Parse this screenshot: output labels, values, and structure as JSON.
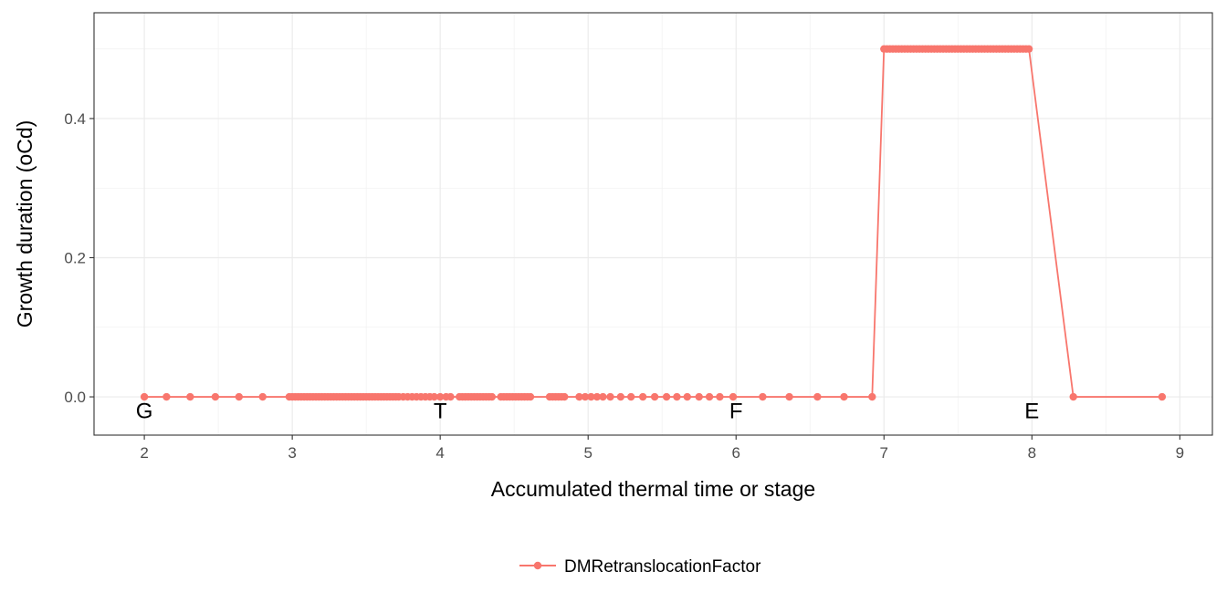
{
  "chart_data": {
    "type": "line",
    "title": "",
    "xlabel": "Accumulated thermal time or stage",
    "ylabel": "Growth duration (oCd)",
    "xlim": [
      1.66,
      9.22
    ],
    "ylim": [
      -0.055,
      0.552
    ],
    "x_ticks": [
      2,
      3,
      4,
      5,
      6,
      7,
      8,
      9
    ],
    "y_ticks": [
      0.0,
      0.2,
      0.4
    ],
    "x_tick_labels": [
      "2",
      "3",
      "4",
      "5",
      "6",
      "7",
      "8",
      "9"
    ],
    "y_tick_labels": [
      "0.0",
      "0.2",
      "0.4"
    ],
    "grid": true,
    "legend_position": "bottom",
    "series": [
      {
        "name": "DMRetranslocationFactor",
        "color": "#F8766D",
        "points": [
          [
            2.0,
            0
          ],
          [
            2.15,
            0
          ],
          [
            2.31,
            0
          ],
          [
            2.48,
            0
          ],
          [
            2.64,
            0
          ],
          [
            2.8,
            0
          ],
          [
            2.98,
            0
          ],
          [
            3.0,
            0
          ],
          [
            3.02,
            0
          ],
          [
            3.04,
            0
          ],
          [
            3.06,
            0
          ],
          [
            3.08,
            0
          ],
          [
            3.1,
            0
          ],
          [
            3.12,
            0
          ],
          [
            3.14,
            0
          ],
          [
            3.16,
            0
          ],
          [
            3.18,
            0
          ],
          [
            3.2,
            0
          ],
          [
            3.22,
            0
          ],
          [
            3.24,
            0
          ],
          [
            3.26,
            0
          ],
          [
            3.28,
            0
          ],
          [
            3.3,
            0
          ],
          [
            3.32,
            0
          ],
          [
            3.34,
            0
          ],
          [
            3.36,
            0
          ],
          [
            3.38,
            0
          ],
          [
            3.4,
            0
          ],
          [
            3.42,
            0
          ],
          [
            3.44,
            0
          ],
          [
            3.46,
            0
          ],
          [
            3.48,
            0
          ],
          [
            3.5,
            0
          ],
          [
            3.52,
            0
          ],
          [
            3.54,
            0
          ],
          [
            3.56,
            0
          ],
          [
            3.58,
            0
          ],
          [
            3.6,
            0
          ],
          [
            3.62,
            0
          ],
          [
            3.64,
            0
          ],
          [
            3.66,
            0
          ],
          [
            3.68,
            0
          ],
          [
            3.7,
            0
          ],
          [
            3.72,
            0
          ],
          [
            3.75,
            0
          ],
          [
            3.78,
            0
          ],
          [
            3.81,
            0
          ],
          [
            3.84,
            0
          ],
          [
            3.87,
            0
          ],
          [
            3.9,
            0
          ],
          [
            3.93,
            0
          ],
          [
            3.96,
            0
          ],
          [
            4.0,
            0
          ],
          [
            4.04,
            0
          ],
          [
            4.07,
            0
          ],
          [
            4.13,
            0
          ],
          [
            4.15,
            0
          ],
          [
            4.17,
            0
          ],
          [
            4.19,
            0
          ],
          [
            4.21,
            0
          ],
          [
            4.23,
            0
          ],
          [
            4.25,
            0
          ],
          [
            4.27,
            0
          ],
          [
            4.29,
            0
          ],
          [
            4.31,
            0
          ],
          [
            4.33,
            0
          ],
          [
            4.35,
            0
          ],
          [
            4.41,
            0
          ],
          [
            4.43,
            0
          ],
          [
            4.45,
            0
          ],
          [
            4.47,
            0
          ],
          [
            4.49,
            0
          ],
          [
            4.51,
            0
          ],
          [
            4.53,
            0
          ],
          [
            4.55,
            0
          ],
          [
            4.57,
            0
          ],
          [
            4.59,
            0
          ],
          [
            4.61,
            0
          ],
          [
            4.74,
            0
          ],
          [
            4.76,
            0
          ],
          [
            4.78,
            0
          ],
          [
            4.8,
            0
          ],
          [
            4.82,
            0
          ],
          [
            4.84,
            0
          ],
          [
            4.94,
            0
          ],
          [
            4.98,
            0
          ],
          [
            5.02,
            0
          ],
          [
            5.06,
            0
          ],
          [
            5.1,
            0
          ],
          [
            5.15,
            0
          ],
          [
            5.22,
            0
          ],
          [
            5.29,
            0
          ],
          [
            5.37,
            0
          ],
          [
            5.45,
            0
          ],
          [
            5.53,
            0
          ],
          [
            5.6,
            0
          ],
          [
            5.67,
            0
          ],
          [
            5.75,
            0
          ],
          [
            5.82,
            0
          ],
          [
            5.89,
            0
          ],
          [
            5.98,
            0
          ],
          [
            6.18,
            0
          ],
          [
            6.36,
            0
          ],
          [
            6.55,
            0
          ],
          [
            6.73,
            0
          ],
          [
            6.92,
            0
          ],
          [
            7.0,
            0.5
          ],
          [
            7.02,
            0.5
          ],
          [
            7.04,
            0.5
          ],
          [
            7.06,
            0.5
          ],
          [
            7.08,
            0.5
          ],
          [
            7.1,
            0.5
          ],
          [
            7.12,
            0.5
          ],
          [
            7.14,
            0.5
          ],
          [
            7.16,
            0.5
          ],
          [
            7.18,
            0.5
          ],
          [
            7.2,
            0.5
          ],
          [
            7.22,
            0.5
          ],
          [
            7.24,
            0.5
          ],
          [
            7.26,
            0.5
          ],
          [
            7.28,
            0.5
          ],
          [
            7.3,
            0.5
          ],
          [
            7.32,
            0.5
          ],
          [
            7.34,
            0.5
          ],
          [
            7.36,
            0.5
          ],
          [
            7.38,
            0.5
          ],
          [
            7.4,
            0.5
          ],
          [
            7.42,
            0.5
          ],
          [
            7.44,
            0.5
          ],
          [
            7.46,
            0.5
          ],
          [
            7.48,
            0.5
          ],
          [
            7.5,
            0.5
          ],
          [
            7.52,
            0.5
          ],
          [
            7.54,
            0.5
          ],
          [
            7.56,
            0.5
          ],
          [
            7.58,
            0.5
          ],
          [
            7.6,
            0.5
          ],
          [
            7.62,
            0.5
          ],
          [
            7.64,
            0.5
          ],
          [
            7.66,
            0.5
          ],
          [
            7.68,
            0.5
          ],
          [
            7.7,
            0.5
          ],
          [
            7.72,
            0.5
          ],
          [
            7.74,
            0.5
          ],
          [
            7.76,
            0.5
          ],
          [
            7.78,
            0.5
          ],
          [
            7.8,
            0.5
          ],
          [
            7.82,
            0.5
          ],
          [
            7.84,
            0.5
          ],
          [
            7.86,
            0.5
          ],
          [
            7.88,
            0.5
          ],
          [
            7.9,
            0.5
          ],
          [
            7.92,
            0.5
          ],
          [
            7.94,
            0.5
          ],
          [
            7.96,
            0.5
          ],
          [
            7.98,
            0.5
          ],
          [
            8.28,
            0
          ],
          [
            8.88,
            0
          ]
        ]
      }
    ],
    "annotations": [
      {
        "label": "G",
        "x": 2.0,
        "y": -0.02
      },
      {
        "label": "T",
        "x": 4.0,
        "y": -0.02
      },
      {
        "label": "F",
        "x": 6.0,
        "y": -0.02
      },
      {
        "label": "E",
        "x": 8.0,
        "y": -0.02
      }
    ]
  }
}
